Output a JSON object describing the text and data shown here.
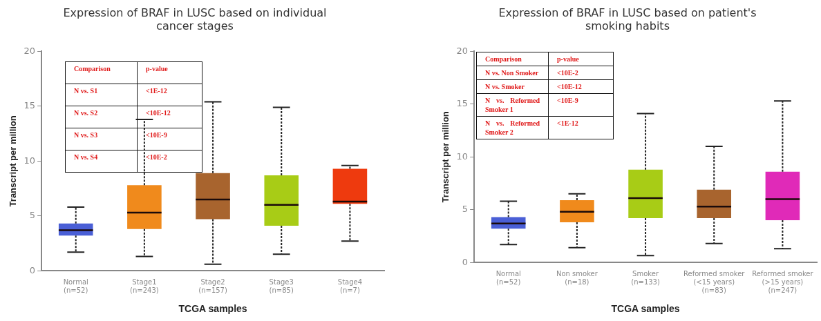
{
  "chart_data": [
    {
      "type": "box",
      "title": "Expression of BRAF in LUSC based on individual cancer stages",
      "xlabel": "TCGA samples",
      "ylabel": "Transcript per million",
      "categories": [
        "Normal\n(n=52)",
        "Stage1\n(n=243)",
        "Stage2\n(n=157)",
        "Stage3\n(n=85)",
        "Stage4\n(n=7)"
      ],
      "colors": [
        "#4a5fd6",
        "#f08a1c",
        "#a8642e",
        "#a8cc16",
        "#ee3a0e"
      ],
      "boxes": [
        {
          "low": 1.7,
          "q1": 3.2,
          "median": 3.7,
          "q3": 4.3,
          "high": 5.8
        },
        {
          "low": 1.3,
          "q1": 3.8,
          "median": 5.3,
          "q3": 7.8,
          "high": 13.8
        },
        {
          "low": 0.6,
          "q1": 4.7,
          "median": 6.5,
          "q3": 8.9,
          "high": 15.4
        },
        {
          "low": 1.5,
          "q1": 4.1,
          "median": 6.0,
          "q3": 8.7,
          "high": 14.9
        },
        {
          "low": 2.7,
          "q1": 6.1,
          "median": 6.3,
          "q3": 9.3,
          "high": 9.6
        }
      ],
      "ylim": [
        0,
        20
      ],
      "yticks": [
        0,
        5,
        10,
        15,
        20
      ],
      "annotations": [
        "Comparison",
        "p-value",
        "N vs. S1",
        "<1E-12",
        "N vs. S2",
        "<10E-12",
        "N vs. S3",
        "<10E-9",
        "N vs. S4",
        "<10E-2"
      ]
    },
    {
      "type": "box",
      "title": "Expression of BRAF in LUSC based on patient's smoking habits",
      "xlabel": "TCGA samples",
      "ylabel": "Transcript per million",
      "categories": [
        "Normal\n(n=52)",
        "Non smoker\n(n=18)",
        "Smoker\n(n=133)",
        "Reformed smoker\n(<15 years)\n(n=83)",
        "Reformed smoker\n(>15 years)\n(n=247)"
      ],
      "colors": [
        "#4a5fd6",
        "#f08a1c",
        "#a8cc16",
        "#a8642e",
        "#e02ab8"
      ],
      "boxes": [
        {
          "low": 1.7,
          "q1": 3.2,
          "median": 3.7,
          "q3": 4.3,
          "high": 5.8
        },
        {
          "low": 1.4,
          "q1": 3.8,
          "median": 4.8,
          "q3": 5.9,
          "high": 6.5
        },
        {
          "low": 0.65,
          "q1": 4.2,
          "median": 6.1,
          "q3": 8.8,
          "high": 14.1
        },
        {
          "low": 1.8,
          "q1": 4.2,
          "median": 5.3,
          "q3": 6.9,
          "high": 11.0
        },
        {
          "low": 1.3,
          "q1": 4.0,
          "median": 6.0,
          "q3": 8.6,
          "high": 15.3
        }
      ],
      "ylim": [
        0,
        20
      ],
      "yticks": [
        0,
        5,
        10,
        15,
        20
      ],
      "annotations": [
        "Comparison",
        "p-value",
        "N vs. Non Smoker",
        "<10E-2",
        "N vs. Smoker",
        "<10E-12",
        "N vs. Reformed Smoker 1",
        "<10E-9",
        "N vs. Reformed Smoker 2",
        "<1E-12"
      ]
    }
  ]
}
